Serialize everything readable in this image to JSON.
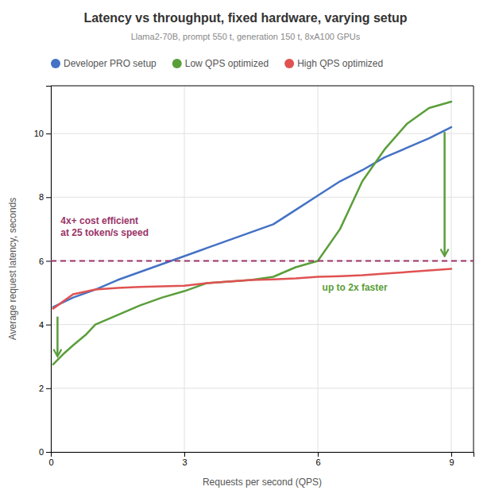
{
  "chart_data": {
    "type": "line",
    "title": "Latency vs throughput, fixed hardware, varying setup",
    "subtitle": "Llama2-70B, prompt 550 t, generation 150 t, 8xA100 GPUs",
    "x_label": "Requests per second (QPS)",
    "y_label": "Average request latency, seconds",
    "xlim": [
      0,
      9.5
    ],
    "ylim": [
      0,
      11.5
    ],
    "xticks": [
      0,
      3,
      6,
      9
    ],
    "yticks": [
      0,
      2,
      4,
      6,
      8,
      10
    ],
    "grid": true,
    "series": [
      {
        "name": "Developer PRO setup",
        "color": "#4472c4",
        "x": [
          0.05,
          0.5,
          1.0,
          1.5,
          2.0,
          2.5,
          3.0,
          3.5,
          4.0,
          4.5,
          5.0,
          5.5,
          6.0,
          6.5,
          7.0,
          7.5,
          8.0,
          8.5,
          9.0
        ],
        "values": [
          4.55,
          4.85,
          5.1,
          5.4,
          5.65,
          5.9,
          6.15,
          6.4,
          6.65,
          6.9,
          7.15,
          7.6,
          8.05,
          8.5,
          8.85,
          9.25,
          9.55,
          9.85,
          10.2
        ]
      },
      {
        "name": "Low QPS optimized",
        "color": "#5a9e3a",
        "x": [
          0.05,
          0.3,
          0.5,
          0.8,
          1.0,
          1.5,
          2.0,
          2.5,
          3.0,
          3.5,
          4.0,
          4.5,
          5.0,
          5.5,
          6.0,
          6.5,
          7.0,
          7.5,
          8.0,
          8.5,
          9.0
        ],
        "values": [
          2.75,
          3.1,
          3.35,
          3.7,
          4.0,
          4.3,
          4.6,
          4.85,
          5.05,
          5.3,
          5.35,
          5.4,
          5.5,
          5.8,
          6.0,
          7.0,
          8.5,
          9.5,
          10.3,
          10.8,
          11.0
        ]
      },
      {
        "name": "High QPS optimized",
        "color": "#e05252",
        "x": [
          0.05,
          0.5,
          1.0,
          1.5,
          2.0,
          2.5,
          3.0,
          3.5,
          4.0,
          4.5,
          5.0,
          5.5,
          6.0,
          6.5,
          7.0,
          7.5,
          8.0,
          8.5,
          9.0
        ],
        "values": [
          4.5,
          4.95,
          5.1,
          5.15,
          5.18,
          5.2,
          5.22,
          5.3,
          5.35,
          5.4,
          5.42,
          5.45,
          5.5,
          5.52,
          5.55,
          5.6,
          5.65,
          5.7,
          5.75
        ]
      }
    ],
    "reference_line": {
      "y": 6.0,
      "color": "#993366",
      "line_style": "dashed"
    },
    "annotations": [
      {
        "text": "4x+ cost efficient\nat 25 token/s speed",
        "x": 0.22,
        "y": 7.05,
        "color": "#993366"
      },
      {
        "text": "up to 2x faster",
        "x": 6.1,
        "y": 5.15,
        "color": "#5a9e3a"
      }
    ],
    "arrows": [
      {
        "x": 0.15,
        "y_start": 4.25,
        "y_end": 3.0,
        "color": "#5a9e3a"
      },
      {
        "x": 8.85,
        "y_start": 10.05,
        "y_end": 6.15,
        "color": "#5a9e3a"
      }
    ]
  }
}
